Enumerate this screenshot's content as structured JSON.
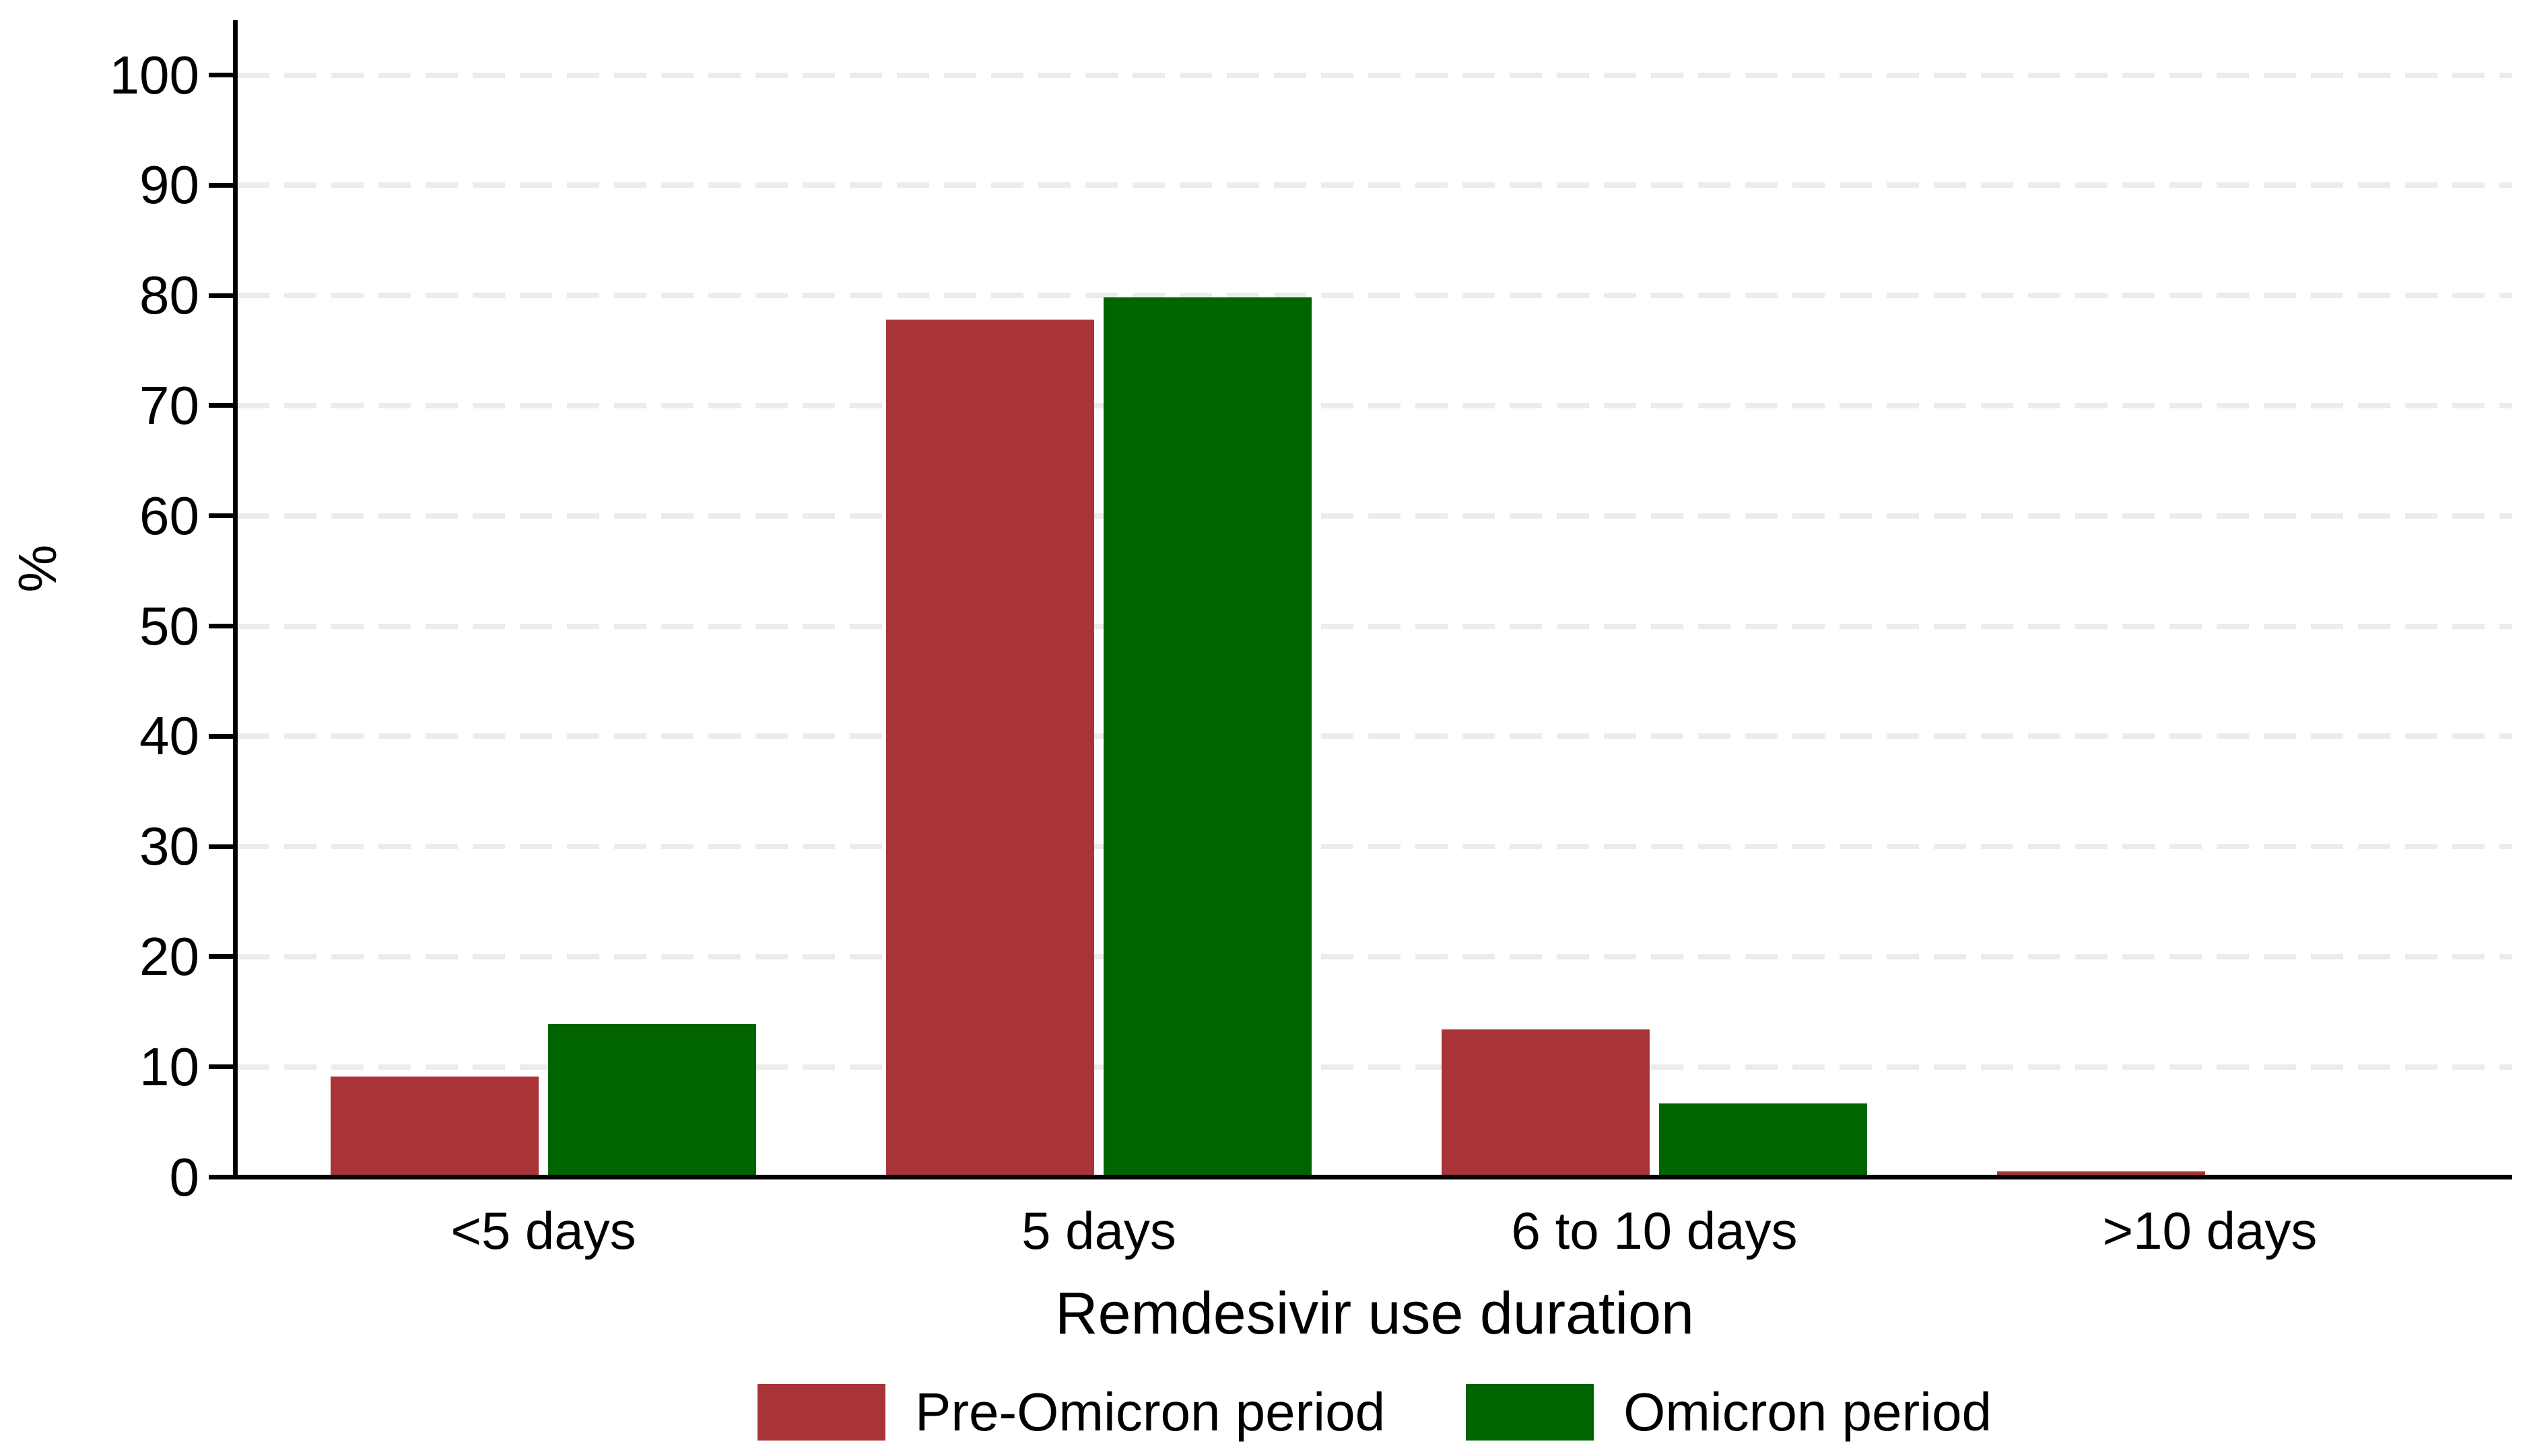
{
  "chart_data": {
    "type": "bar",
    "title": "",
    "categories": [
      "<5 days",
      "5 days",
      "6 to 10 days",
      ">10 days"
    ],
    "series": [
      {
        "name": "Pre-Omicron period",
        "color": "#A93438",
        "values": [
          8.9,
          77.6,
          13.2,
          0.3
        ]
      },
      {
        "name": "Omicron period",
        "color": "#006400",
        "values": [
          13.7,
          79.6,
          6.5,
          0
        ]
      }
    ],
    "xlabel": "Remdesivir use duration",
    "ylabel": "%",
    "ylim": [
      0,
      100
    ],
    "yticks": [
      0,
      10,
      20,
      30,
      40,
      50,
      60,
      70,
      80,
      90,
      100
    ],
    "grid": "horizontal-dashed",
    "gridline_color": "#ECECEC",
    "axis_color": "#000000",
    "background_color": "#FFFFFF",
    "legend_position": "bottom"
  }
}
